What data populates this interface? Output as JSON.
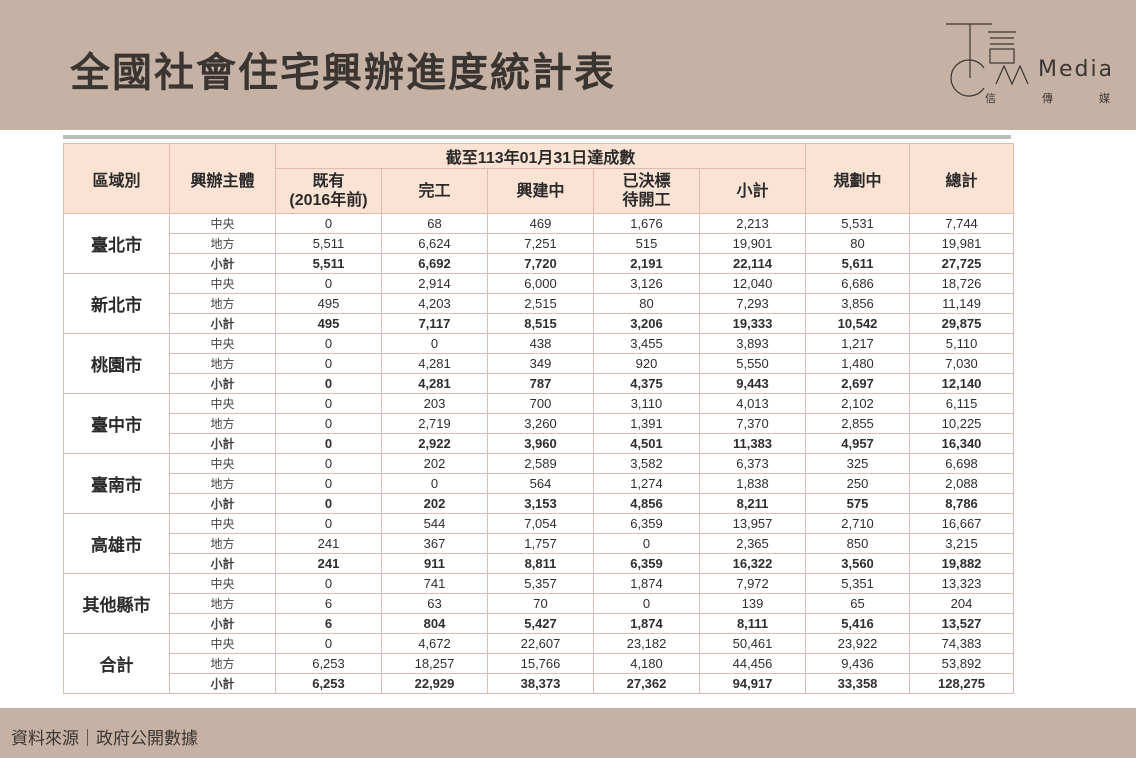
{
  "header": {
    "title": "全國社會住宅興辦進度統計表",
    "logo_text": "Media",
    "logo_sub": [
      "信",
      "傳",
      "媒"
    ]
  },
  "footer": {
    "source": "資料來源｜政府公開數據"
  },
  "colors": {
    "band": "#c5b2a4",
    "header_fill": "#fbe3d4",
    "border": "#e3b9b2"
  },
  "table": {
    "headers": {
      "region": "區域別",
      "entity": "興辦主體",
      "group": "截至113年01月31日達成數",
      "existing": "既有\n(2016年前)",
      "completed": "完工",
      "building": "興建中",
      "pending": "已決標\n待開工",
      "subtotal": "小計",
      "planning": "規劃中",
      "total": "總計"
    },
    "regions": [
      {
        "name": "臺北市",
        "rows": [
          {
            "entity": "中央",
            "values": [
              "0",
              "68",
              "469",
              "1,676",
              "2,213",
              "5,531",
              "7,744"
            ]
          },
          {
            "entity": "地方",
            "values": [
              "5,511",
              "6,624",
              "7,251",
              "515",
              "19,901",
              "80",
              "19,981"
            ]
          },
          {
            "entity": "小計",
            "values": [
              "5,511",
              "6,692",
              "7,720",
              "2,191",
              "22,114",
              "5,611",
              "27,725"
            ]
          }
        ]
      },
      {
        "name": "新北市",
        "rows": [
          {
            "entity": "中央",
            "values": [
              "0",
              "2,914",
              "6,000",
              "3,126",
              "12,040",
              "6,686",
              "18,726"
            ]
          },
          {
            "entity": "地方",
            "values": [
              "495",
              "4,203",
              "2,515",
              "80",
              "7,293",
              "3,856",
              "11,149"
            ]
          },
          {
            "entity": "小計",
            "values": [
              "495",
              "7,117",
              "8,515",
              "3,206",
              "19,333",
              "10,542",
              "29,875"
            ]
          }
        ]
      },
      {
        "name": "桃園市",
        "rows": [
          {
            "entity": "中央",
            "values": [
              "0",
              "0",
              "438",
              "3,455",
              "3,893",
              "1,217",
              "5,110"
            ]
          },
          {
            "entity": "地方",
            "values": [
              "0",
              "4,281",
              "349",
              "920",
              "5,550",
              "1,480",
              "7,030"
            ]
          },
          {
            "entity": "小計",
            "values": [
              "0",
              "4,281",
              "787",
              "4,375",
              "9,443",
              "2,697",
              "12,140"
            ]
          }
        ]
      },
      {
        "name": "臺中市",
        "rows": [
          {
            "entity": "中央",
            "values": [
              "0",
              "203",
              "700",
              "3,110",
              "4,013",
              "2,102",
              "6,115"
            ]
          },
          {
            "entity": "地方",
            "values": [
              "0",
              "2,719",
              "3,260",
              "1,391",
              "7,370",
              "2,855",
              "10,225"
            ]
          },
          {
            "entity": "小計",
            "values": [
              "0",
              "2,922",
              "3,960",
              "4,501",
              "11,383",
              "4,957",
              "16,340"
            ]
          }
        ]
      },
      {
        "name": "臺南市",
        "rows": [
          {
            "entity": "中央",
            "values": [
              "0",
              "202",
              "2,589",
              "3,582",
              "6,373",
              "325",
              "6,698"
            ]
          },
          {
            "entity": "地方",
            "values": [
              "0",
              "0",
              "564",
              "1,274",
              "1,838",
              "250",
              "2,088"
            ]
          },
          {
            "entity": "小計",
            "values": [
              "0",
              "202",
              "3,153",
              "4,856",
              "8,211",
              "575",
              "8,786"
            ]
          }
        ]
      },
      {
        "name": "高雄市",
        "rows": [
          {
            "entity": "中央",
            "values": [
              "0",
              "544",
              "7,054",
              "6,359",
              "13,957",
              "2,710",
              "16,667"
            ]
          },
          {
            "entity": "地方",
            "values": [
              "241",
              "367",
              "1,757",
              "0",
              "2,365",
              "850",
              "3,215"
            ]
          },
          {
            "entity": "小計",
            "values": [
              "241",
              "911",
              "8,811",
              "6,359",
              "16,322",
              "3,560",
              "19,882"
            ]
          }
        ]
      },
      {
        "name": "其他縣市",
        "rows": [
          {
            "entity": "中央",
            "values": [
              "0",
              "741",
              "5,357",
              "1,874",
              "7,972",
              "5,351",
              "13,323"
            ]
          },
          {
            "entity": "地方",
            "values": [
              "6",
              "63",
              "70",
              "0",
              "139",
              "65",
              "204"
            ]
          },
          {
            "entity": "小計",
            "values": [
              "6",
              "804",
              "5,427",
              "1,874",
              "8,111",
              "5,416",
              "13,527"
            ]
          }
        ]
      },
      {
        "name": "合計",
        "rows": [
          {
            "entity": "中央",
            "values": [
              "0",
              "4,672",
              "22,607",
              "23,182",
              "50,461",
              "23,922",
              "74,383"
            ]
          },
          {
            "entity": "地方",
            "values": [
              "6,253",
              "18,257",
              "15,766",
              "4,180",
              "44,456",
              "9,436",
              "53,892"
            ]
          },
          {
            "entity": "小計",
            "values": [
              "6,253",
              "22,929",
              "38,373",
              "27,362",
              "94,917",
              "33,358",
              "128,275"
            ]
          }
        ]
      }
    ]
  }
}
